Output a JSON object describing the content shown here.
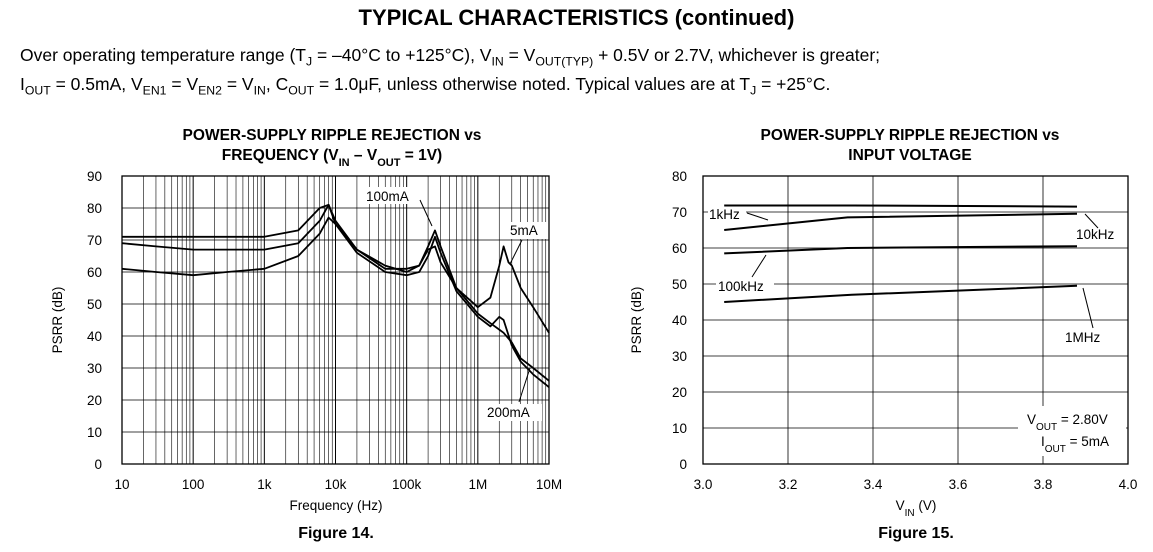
{
  "page": {
    "title": "TYPICAL CHARACTERISTICS (continued)",
    "cond1": [
      "Over operating temperature range (T",
      "J",
      " = –40°C to +125°C), V",
      "IN",
      " = V",
      "OUT(TYP)",
      " + 0.5V or 2.7V, whichever is greater;"
    ],
    "cond2": [
      "I",
      "OUT",
      " = 0.5mA, V",
      "EN1",
      " = V",
      "EN2",
      " = V",
      "IN",
      ", C",
      "OUT",
      " = 1.0μF, unless otherwise noted. Typical values are at T",
      "J",
      " = +25°C."
    ]
  },
  "chart_data": [
    {
      "type": "line",
      "title": [
        "POWER-SUPPLY RIPPLE REJECTION vs",
        "FREQUENCY (V",
        "IN",
        " – V",
        "OUT",
        " = 1V)"
      ],
      "xlabel": "Frequency (Hz)",
      "ylabel": "PSRR (dB)",
      "xscale": "log",
      "xlim": [
        10,
        10000000
      ],
      "ylim": [
        0,
        90
      ],
      "grid": true,
      "x_tick_values": [
        10,
        100,
        1000,
        10000,
        100000,
        1000000,
        10000000
      ],
      "x_tick_labels": [
        "10",
        "100",
        "1k",
        "10k",
        "100k",
        "1M",
        "10M"
      ],
      "y_ticks": [
        0,
        10,
        20,
        30,
        40,
        50,
        60,
        70,
        80,
        90
      ],
      "figure_label": "Figure 14.",
      "series": [
        {
          "name": "5mA",
          "x": [
            10,
            30,
            100,
            300,
            1000,
            3000,
            6000,
            8000,
            10000,
            20000,
            50000,
            100000,
            150000,
            200000,
            250000,
            300000,
            500000,
            1000000,
            1500000,
            2000000,
            2300000,
            2700000,
            3000000,
            4000000,
            6000000,
            10000000
          ],
          "y": [
            61,
            60,
            59,
            60,
            61,
            65,
            72,
            77,
            75,
            67,
            62,
            60,
            62,
            67,
            68,
            63,
            55,
            49,
            52,
            62,
            68,
            63,
            62,
            55,
            49,
            41
          ]
        },
        {
          "name": "100mA",
          "x": [
            10,
            30,
            100,
            300,
            1000,
            3000,
            6000,
            8000,
            10000,
            20000,
            50000,
            100000,
            150000,
            200000,
            250000,
            300000,
            500000,
            1000000,
            1500000,
            2000000,
            2300000,
            3000000,
            4000000,
            6000000,
            10000000
          ],
          "y": [
            71,
            71,
            71,
            71,
            71,
            73,
            80,
            81,
            76,
            67,
            61,
            61,
            62,
            68,
            73,
            68,
            55,
            47,
            44,
            42,
            41,
            38,
            33,
            30,
            26
          ]
        },
        {
          "name": "200mA",
          "x": [
            10,
            30,
            100,
            300,
            1000,
            3000,
            6000,
            8000,
            10000,
            20000,
            50000,
            100000,
            150000,
            200000,
            250000,
            300000,
            500000,
            1000000,
            1500000,
            2000000,
            2300000,
            3000000,
            4000000,
            6000000,
            10000000
          ],
          "y": [
            69,
            68,
            67,
            67,
            67,
            69,
            76,
            81,
            75,
            66,
            60,
            59,
            60,
            65,
            71,
            66,
            54,
            46,
            43,
            46,
            45,
            37,
            32,
            28,
            24
          ]
        }
      ],
      "annotations": [
        "100mA",
        "5mA",
        "200mA"
      ]
    },
    {
      "type": "line",
      "title": [
        "POWER-SUPPLY RIPPLE REJECTION vs",
        "INPUT VOLTAGE"
      ],
      "xlabel_parts": [
        "V",
        "IN",
        " (V)"
      ],
      "ylabel": "PSRR (dB)",
      "xlim": [
        3.0,
        4.0
      ],
      "ylim": [
        0,
        80
      ],
      "grid": true,
      "x_ticks": [
        "3.0",
        "3.2",
        "3.4",
        "3.6",
        "3.8",
        "4.0"
      ],
      "y_ticks": [
        0,
        10,
        20,
        30,
        40,
        50,
        60,
        70,
        80
      ],
      "figure_label": "Figure 15.",
      "series": [
        {
          "name": "10kHz",
          "x": [
            3.05,
            3.35,
            3.88
          ],
          "y": [
            71.8,
            71.8,
            71.5
          ]
        },
        {
          "name": "1kHz",
          "x": [
            3.05,
            3.34,
            3.88
          ],
          "y": [
            65,
            68.5,
            69.5
          ]
        },
        {
          "name": "100kHz",
          "x": [
            3.05,
            3.34,
            3.88
          ],
          "y": [
            58.5,
            60,
            60.5
          ]
        },
        {
          "name": "1MHz",
          "x": [
            3.05,
            3.35,
            3.88
          ],
          "y": [
            45,
            47,
            49.5
          ]
        }
      ],
      "conditions": [
        [
          "V",
          "OUT",
          " = 2.80V"
        ],
        [
          "I",
          "OUT",
          " = 5mA"
        ]
      ]
    }
  ],
  "colors": {
    "line": "#000000",
    "grid": "#000000",
    "background": "#ffffff"
  }
}
